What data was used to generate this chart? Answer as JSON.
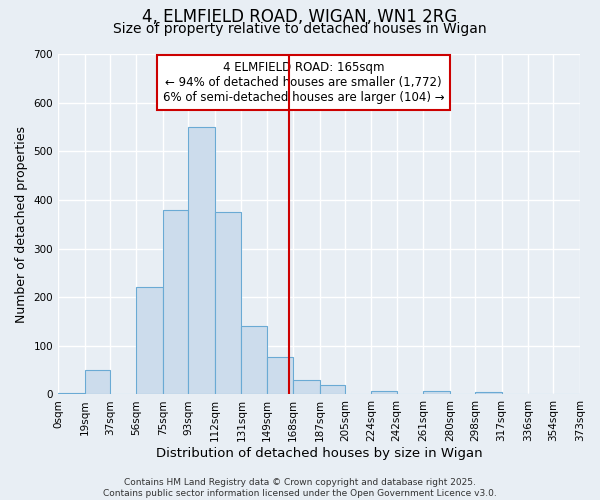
{
  "title": "4, ELMFIELD ROAD, WIGAN, WN1 2RG",
  "subtitle": "Size of property relative to detached houses in Wigan",
  "xlabel": "Distribution of detached houses by size in Wigan",
  "ylabel": "Number of detached properties",
  "bin_edges": [
    0,
    19,
    37,
    56,
    75,
    93,
    112,
    131,
    149,
    168,
    187,
    205,
    224,
    242,
    261,
    280,
    298,
    317,
    336,
    354,
    373
  ],
  "bin_labels": [
    "0sqm",
    "19sqm",
    "37sqm",
    "56sqm",
    "75sqm",
    "93sqm",
    "112sqm",
    "131sqm",
    "149sqm",
    "168sqm",
    "187sqm",
    "205sqm",
    "224sqm",
    "242sqm",
    "261sqm",
    "280sqm",
    "298sqm",
    "317sqm",
    "336sqm",
    "354sqm",
    "373sqm"
  ],
  "counts": [
    2,
    50,
    0,
    220,
    380,
    550,
    375,
    140,
    78,
    30,
    20,
    0,
    8,
    0,
    8,
    0,
    5,
    0,
    0,
    0
  ],
  "bar_color": "#ccdcec",
  "bar_edge_color": "#6aaad4",
  "vline_x": 165,
  "vline_color": "#cc0000",
  "annotation_line1": "4 ELMFIELD ROAD: 165sqm",
  "annotation_line2": "← 94% of detached houses are smaller (1,772)",
  "annotation_line3": "6% of semi-detached houses are larger (104) →",
  "annotation_box_color": "#ffffff",
  "annotation_box_edge": "#cc0000",
  "ylim": [
    0,
    700
  ],
  "yticks": [
    0,
    100,
    200,
    300,
    400,
    500,
    600,
    700
  ],
  "background_color": "#e8eef4",
  "plot_bg_color": "#e8eef4",
  "footer_line1": "Contains HM Land Registry data © Crown copyright and database right 2025.",
  "footer_line2": "Contains public sector information licensed under the Open Government Licence v3.0.",
  "title_fontsize": 12,
  "subtitle_fontsize": 10,
  "xlabel_fontsize": 9.5,
  "ylabel_fontsize": 9,
  "annotation_fontsize": 8.5,
  "footer_fontsize": 6.5,
  "tick_fontsize": 7.5
}
